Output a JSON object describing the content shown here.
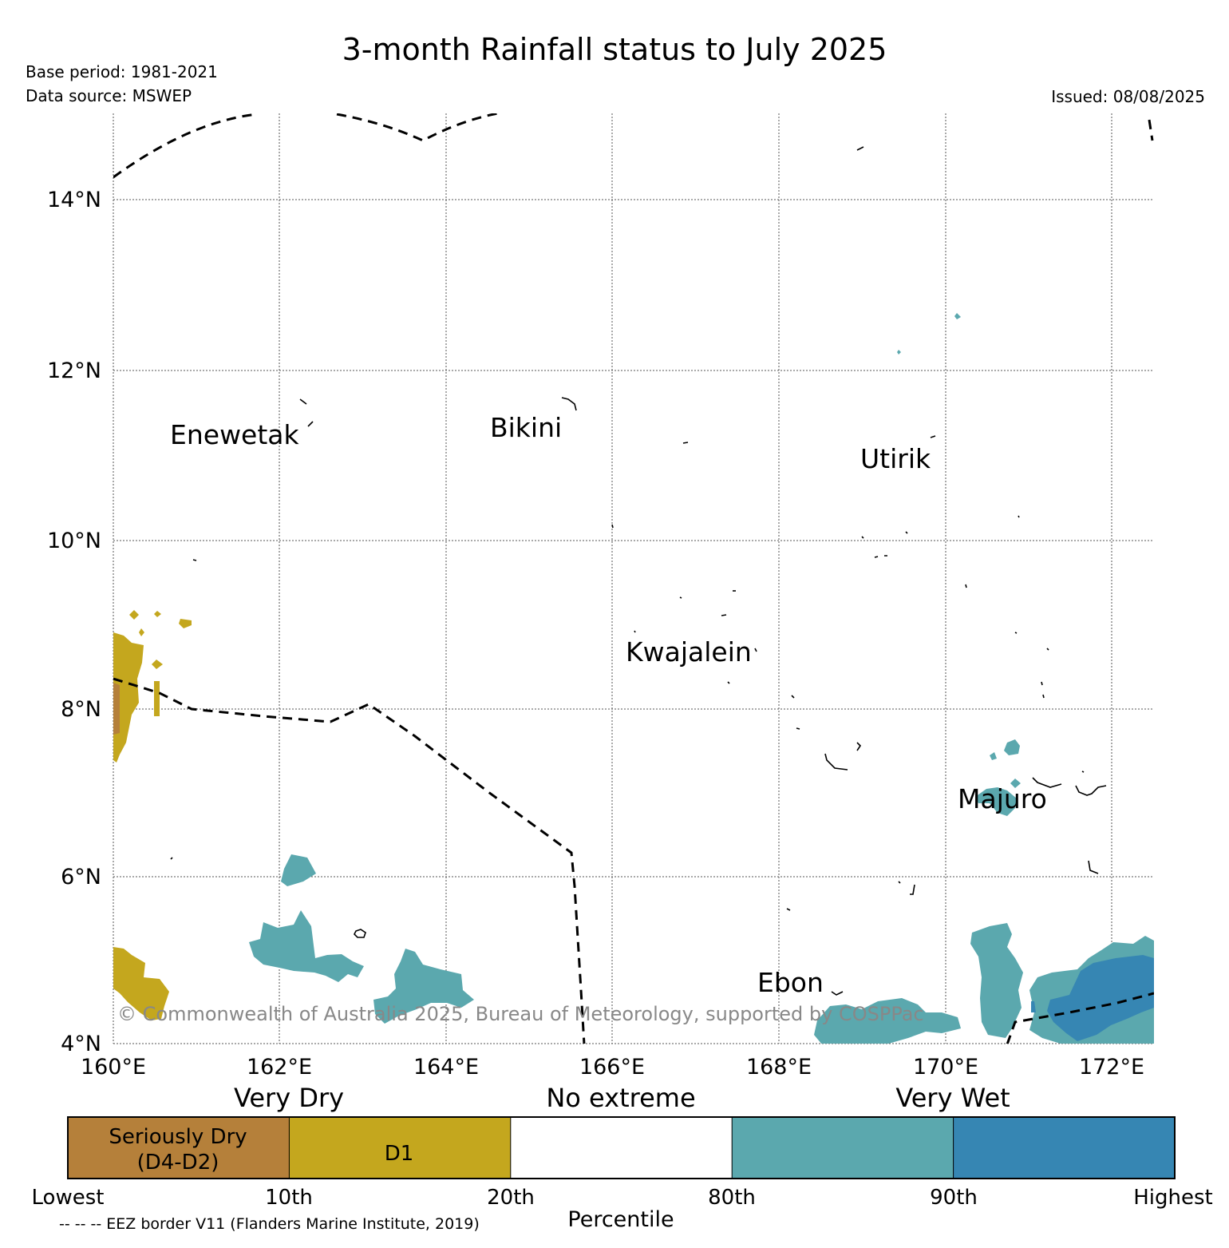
{
  "header": {
    "title": "3-month Rainfall status to July 2025",
    "base_period": "Base period: 1981-2021",
    "data_source": "Data source: MSWEP",
    "issued": "Issued: 08/08/2025"
  },
  "map": {
    "lat_labels": [
      "14°N",
      "12°N",
      "10°N",
      "8°N",
      "6°N",
      "4°N"
    ],
    "lon_labels": [
      "160°E",
      "162°E",
      "164°E",
      "166°E",
      "168°E",
      "170°E",
      "172°E"
    ],
    "places": [
      "Enewetak",
      "Bikini",
      "Utirik",
      "Kwajalein",
      "Majuro",
      "Ebon"
    ],
    "copyright": "© Commonwealth of Australia 2025, Bureau of Meteorology, supported by COSPPac",
    "colors": {
      "seriously_dry": "#b5803a",
      "d1": "#c4a71e",
      "no_extreme": "#ffffff",
      "very_wet_80": "#5ba8ae",
      "very_wet_90": "#3686b3"
    }
  },
  "legend": {
    "groups": [
      "Very Dry",
      "No extreme",
      "Very Wet"
    ],
    "cells": [
      {
        "line1": "Seriously Dry",
        "line2": "(D4-D2)",
        "color": "#b5803a"
      },
      {
        "line1": "D1",
        "line2": "",
        "color": "#c4a71e"
      },
      {
        "line1": "",
        "line2": "",
        "color": "#ffffff"
      },
      {
        "line1": "",
        "line2": "",
        "color": "#5ba8ae"
      },
      {
        "line1": "",
        "line2": "",
        "color": "#3686b3"
      }
    ],
    "ticks": [
      "Lowest",
      "10th",
      "20th",
      "80th",
      "90th",
      "Highest"
    ],
    "axis_label": "Percentile",
    "eez_note": "-- -- -- EEZ border V11 (Flanders Marine Institute, 2019)"
  }
}
